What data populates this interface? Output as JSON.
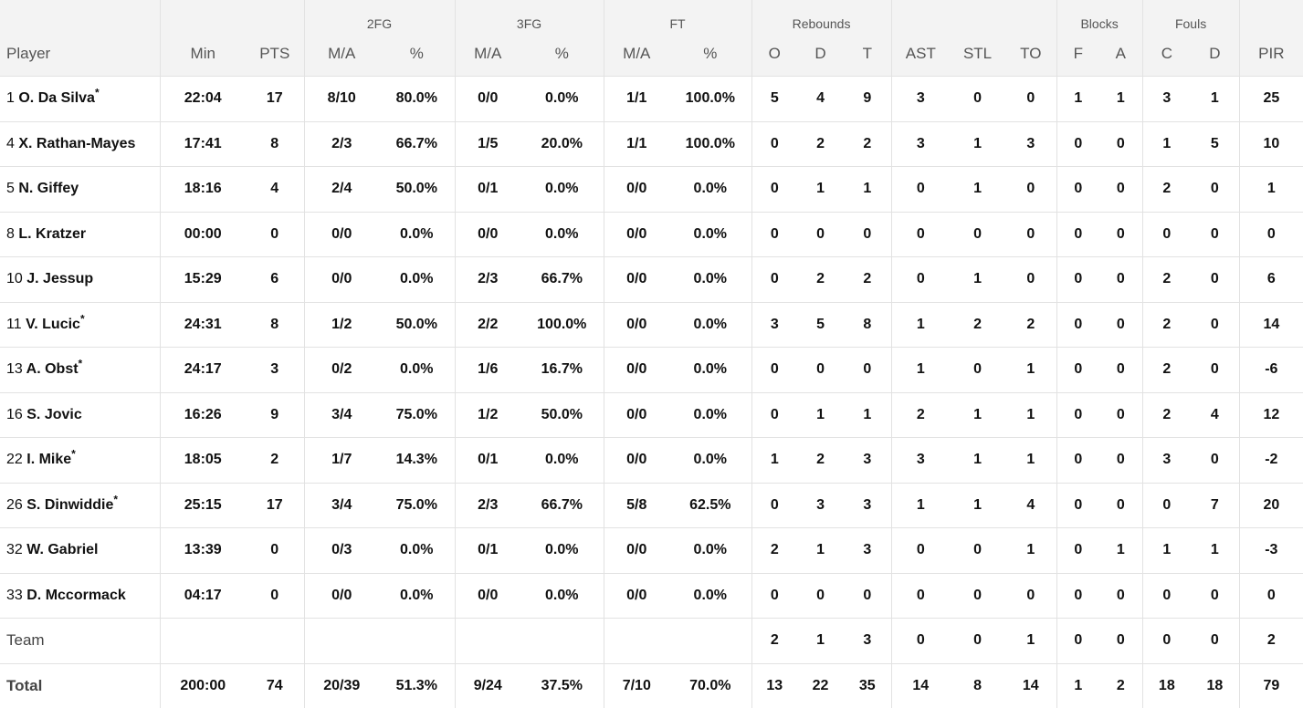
{
  "header": {
    "groups": {
      "fg2": "2FG",
      "fg3": "3FG",
      "ft": "FT",
      "rebounds": "Rebounds",
      "blocks": "Blocks",
      "fouls": "Fouls"
    },
    "columns": {
      "player": "Player",
      "min": "Min",
      "pts": "PTS",
      "fg2_ma": "M/A",
      "fg2_pct": "%",
      "fg3_ma": "M/A",
      "fg3_pct": "%",
      "ft_ma": "M/A",
      "ft_pct": "%",
      "reb_o": "O",
      "reb_d": "D",
      "reb_t": "T",
      "ast": "AST",
      "stl": "STL",
      "to": "TO",
      "blk_f": "F",
      "blk_a": "A",
      "foul_c": "C",
      "foul_d": "D",
      "pir": "PIR"
    }
  },
  "players": [
    {
      "num": "1",
      "name": "O. Da Silva",
      "starter": "*",
      "min": "22:04",
      "pts": "17",
      "fg2_ma": "8/10",
      "fg2_pct": "80.0%",
      "fg3_ma": "0/0",
      "fg3_pct": "0.0%",
      "ft_ma": "1/1",
      "ft_pct": "100.0%",
      "reb_o": "5",
      "reb_d": "4",
      "reb_t": "9",
      "ast": "3",
      "stl": "0",
      "to": "0",
      "blk_f": "1",
      "blk_a": "1",
      "foul_c": "3",
      "foul_d": "1",
      "pir": "25"
    },
    {
      "num": "4",
      "name": "X. Rathan-Mayes",
      "starter": "",
      "min": "17:41",
      "pts": "8",
      "fg2_ma": "2/3",
      "fg2_pct": "66.7%",
      "fg3_ma": "1/5",
      "fg3_pct": "20.0%",
      "ft_ma": "1/1",
      "ft_pct": "100.0%",
      "reb_o": "0",
      "reb_d": "2",
      "reb_t": "2",
      "ast": "3",
      "stl": "1",
      "to": "3",
      "blk_f": "0",
      "blk_a": "0",
      "foul_c": "1",
      "foul_d": "5",
      "pir": "10"
    },
    {
      "num": "5",
      "name": "N. Giffey",
      "starter": "",
      "min": "18:16",
      "pts": "4",
      "fg2_ma": "2/4",
      "fg2_pct": "50.0%",
      "fg3_ma": "0/1",
      "fg3_pct": "0.0%",
      "ft_ma": "0/0",
      "ft_pct": "0.0%",
      "reb_o": "0",
      "reb_d": "1",
      "reb_t": "1",
      "ast": "0",
      "stl": "1",
      "to": "0",
      "blk_f": "0",
      "blk_a": "0",
      "foul_c": "2",
      "foul_d": "0",
      "pir": "1"
    },
    {
      "num": "8",
      "name": "L. Kratzer",
      "starter": "",
      "min": "00:00",
      "pts": "0",
      "fg2_ma": "0/0",
      "fg2_pct": "0.0%",
      "fg3_ma": "0/0",
      "fg3_pct": "0.0%",
      "ft_ma": "0/0",
      "ft_pct": "0.0%",
      "reb_o": "0",
      "reb_d": "0",
      "reb_t": "0",
      "ast": "0",
      "stl": "0",
      "to": "0",
      "blk_f": "0",
      "blk_a": "0",
      "foul_c": "0",
      "foul_d": "0",
      "pir": "0"
    },
    {
      "num": "10",
      "name": "J. Jessup",
      "starter": "",
      "min": "15:29",
      "pts": "6",
      "fg2_ma": "0/0",
      "fg2_pct": "0.0%",
      "fg3_ma": "2/3",
      "fg3_pct": "66.7%",
      "ft_ma": "0/0",
      "ft_pct": "0.0%",
      "reb_o": "0",
      "reb_d": "2",
      "reb_t": "2",
      "ast": "0",
      "stl": "1",
      "to": "0",
      "blk_f": "0",
      "blk_a": "0",
      "foul_c": "2",
      "foul_d": "0",
      "pir": "6"
    },
    {
      "num": "11",
      "name": "V. Lucic",
      "starter": "*",
      "min": "24:31",
      "pts": "8",
      "fg2_ma": "1/2",
      "fg2_pct": "50.0%",
      "fg3_ma": "2/2",
      "fg3_pct": "100.0%",
      "ft_ma": "0/0",
      "ft_pct": "0.0%",
      "reb_o": "3",
      "reb_d": "5",
      "reb_t": "8",
      "ast": "1",
      "stl": "2",
      "to": "2",
      "blk_f": "0",
      "blk_a": "0",
      "foul_c": "2",
      "foul_d": "0",
      "pir": "14"
    },
    {
      "num": "13",
      "name": "A. Obst",
      "starter": "*",
      "min": "24:17",
      "pts": "3",
      "fg2_ma": "0/2",
      "fg2_pct": "0.0%",
      "fg3_ma": "1/6",
      "fg3_pct": "16.7%",
      "ft_ma": "0/0",
      "ft_pct": "0.0%",
      "reb_o": "0",
      "reb_d": "0",
      "reb_t": "0",
      "ast": "1",
      "stl": "0",
      "to": "1",
      "blk_f": "0",
      "blk_a": "0",
      "foul_c": "2",
      "foul_d": "0",
      "pir": "-6"
    },
    {
      "num": "16",
      "name": "S. Jovic",
      "starter": "",
      "min": "16:26",
      "pts": "9",
      "fg2_ma": "3/4",
      "fg2_pct": "75.0%",
      "fg3_ma": "1/2",
      "fg3_pct": "50.0%",
      "ft_ma": "0/0",
      "ft_pct": "0.0%",
      "reb_o": "0",
      "reb_d": "1",
      "reb_t": "1",
      "ast": "2",
      "stl": "1",
      "to": "1",
      "blk_f": "0",
      "blk_a": "0",
      "foul_c": "2",
      "foul_d": "4",
      "pir": "12"
    },
    {
      "num": "22",
      "name": "I. Mike",
      "starter": "*",
      "min": "18:05",
      "pts": "2",
      "fg2_ma": "1/7",
      "fg2_pct": "14.3%",
      "fg3_ma": "0/1",
      "fg3_pct": "0.0%",
      "ft_ma": "0/0",
      "ft_pct": "0.0%",
      "reb_o": "1",
      "reb_d": "2",
      "reb_t": "3",
      "ast": "3",
      "stl": "1",
      "to": "1",
      "blk_f": "0",
      "blk_a": "0",
      "foul_c": "3",
      "foul_d": "0",
      "pir": "-2"
    },
    {
      "num": "26",
      "name": "S. Dinwiddie",
      "starter": "*",
      "min": "25:15",
      "pts": "17",
      "fg2_ma": "3/4",
      "fg2_pct": "75.0%",
      "fg3_ma": "2/3",
      "fg3_pct": "66.7%",
      "ft_ma": "5/8",
      "ft_pct": "62.5%",
      "reb_o": "0",
      "reb_d": "3",
      "reb_t": "3",
      "ast": "1",
      "stl": "1",
      "to": "4",
      "blk_f": "0",
      "blk_a": "0",
      "foul_c": "0",
      "foul_d": "7",
      "pir": "20"
    },
    {
      "num": "32",
      "name": "W. Gabriel",
      "starter": "",
      "min": "13:39",
      "pts": "0",
      "fg2_ma": "0/3",
      "fg2_pct": "0.0%",
      "fg3_ma": "0/1",
      "fg3_pct": "0.0%",
      "ft_ma": "0/0",
      "ft_pct": "0.0%",
      "reb_o": "2",
      "reb_d": "1",
      "reb_t": "3",
      "ast": "0",
      "stl": "0",
      "to": "1",
      "blk_f": "0",
      "blk_a": "1",
      "foul_c": "1",
      "foul_d": "1",
      "pir": "-3"
    },
    {
      "num": "33",
      "name": "D. Mccormack",
      "starter": "",
      "min": "04:17",
      "pts": "0",
      "fg2_ma": "0/0",
      "fg2_pct": "0.0%",
      "fg3_ma": "0/0",
      "fg3_pct": "0.0%",
      "ft_ma": "0/0",
      "ft_pct": "0.0%",
      "reb_o": "0",
      "reb_d": "0",
      "reb_t": "0",
      "ast": "0",
      "stl": "0",
      "to": "0",
      "blk_f": "0",
      "blk_a": "0",
      "foul_c": "0",
      "foul_d": "0",
      "pir": "0"
    }
  ],
  "team": {
    "label": "Team",
    "reb_o": "2",
    "reb_d": "1",
    "reb_t": "3",
    "ast": "0",
    "stl": "0",
    "to": "1",
    "blk_f": "0",
    "blk_a": "0",
    "foul_c": "0",
    "foul_d": "0",
    "pir": "2"
  },
  "total": {
    "label": "Total",
    "min": "200:00",
    "pts": "74",
    "fg2_ma": "20/39",
    "fg2_pct": "51.3%",
    "fg3_ma": "9/24",
    "fg3_pct": "37.5%",
    "ft_ma": "7/10",
    "ft_pct": "70.0%",
    "reb_o": "13",
    "reb_d": "22",
    "reb_t": "35",
    "ast": "14",
    "stl": "8",
    "to": "14",
    "blk_f": "1",
    "blk_a": "2",
    "foul_c": "18",
    "foul_d": "18",
    "pir": "79"
  }
}
